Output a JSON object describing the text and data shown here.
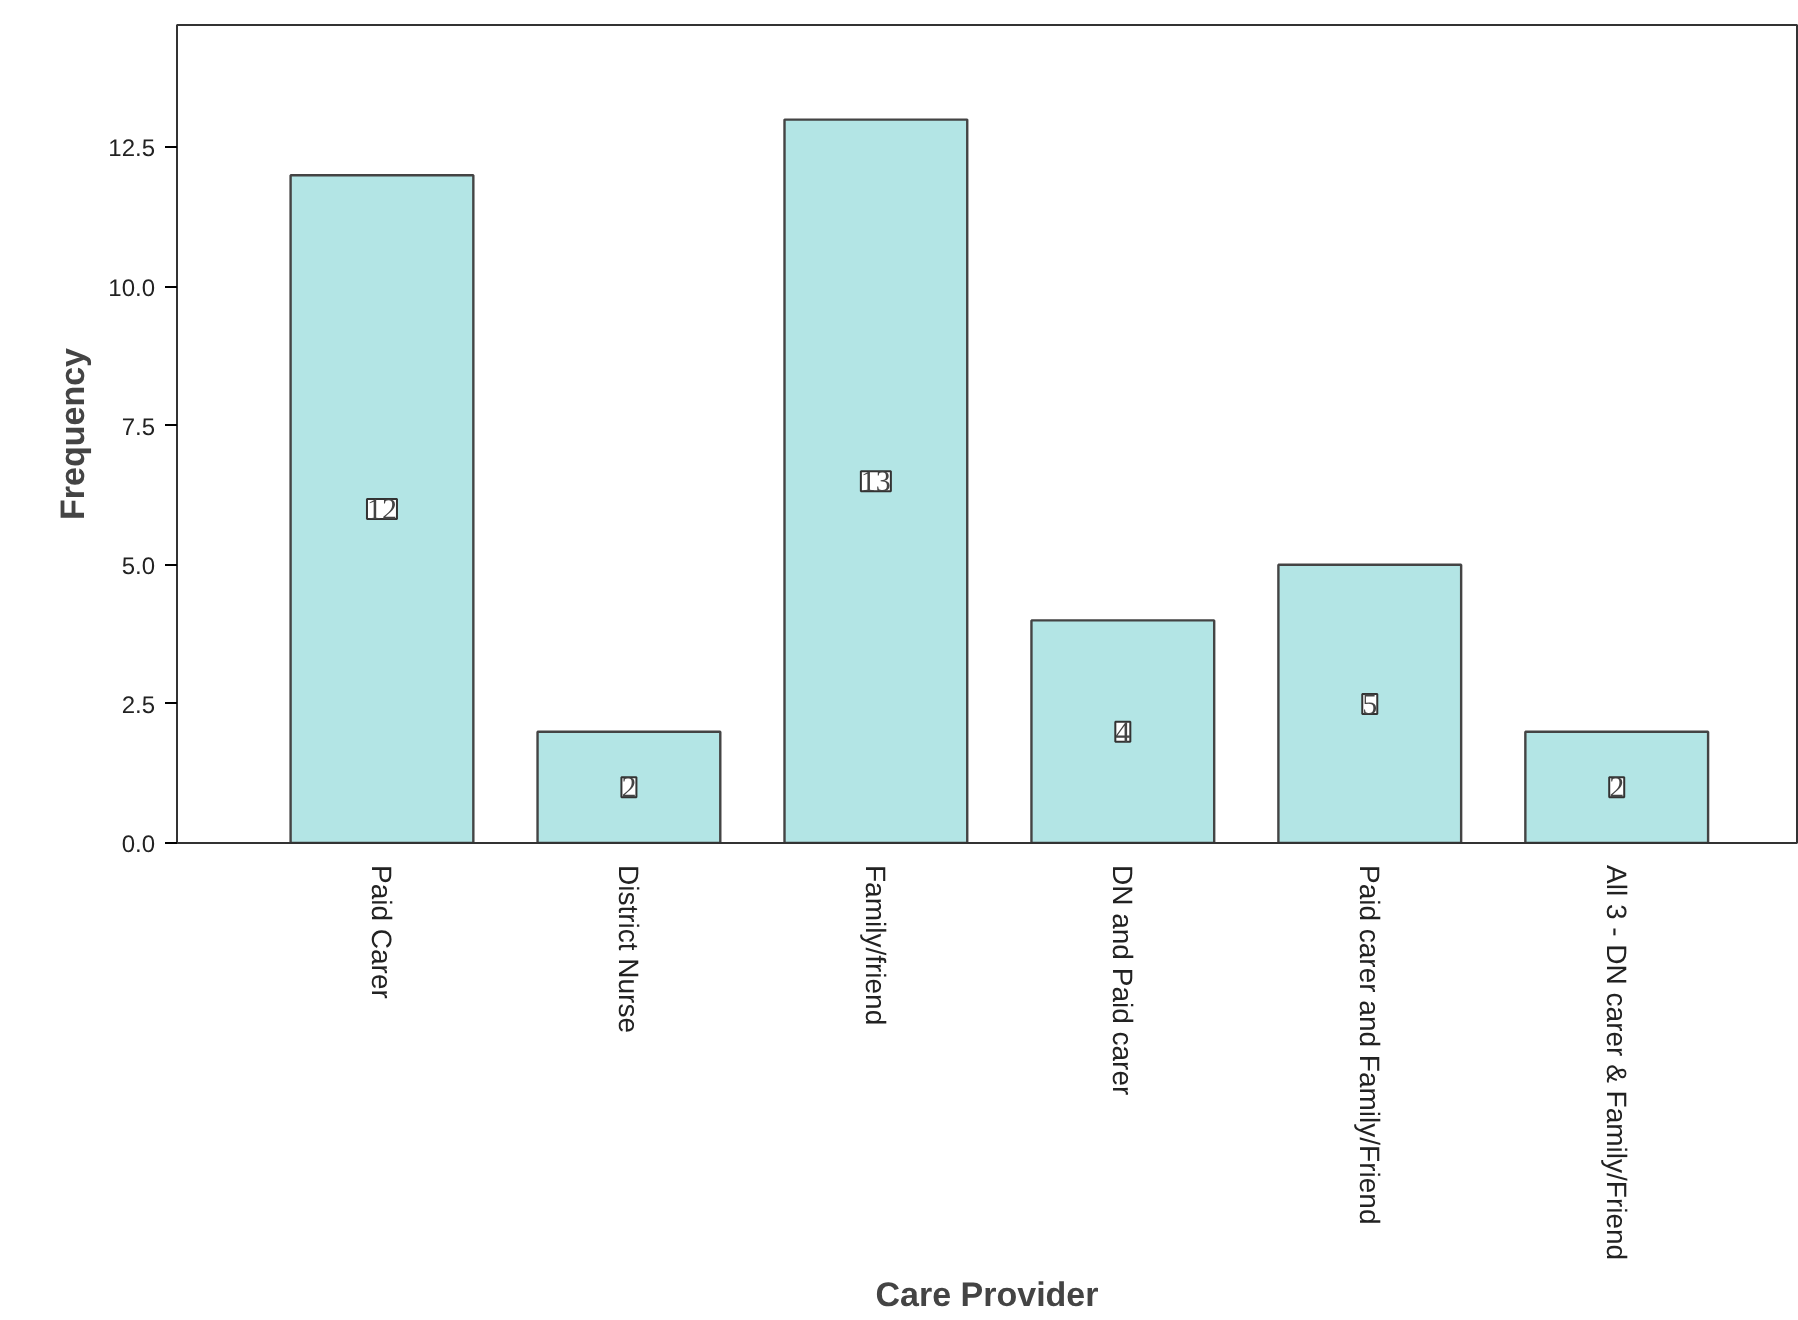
{
  "chart_data": {
    "type": "bar",
    "xlabel": "Care Provider",
    "ylabel": "Frequency",
    "categories": [
      "Paid Carer",
      "District Nurse",
      "Family/friend",
      "DN and Paid carer",
      "Paid carer and Family/Friend",
      "All 3 - DN carer & Family/Friend"
    ],
    "values": [
      12,
      2,
      13,
      4,
      5,
      2
    ],
    "color": "#b3e5e5",
    "ylim": [
      0,
      14.7
    ],
    "yticks": [
      {
        "value": 0,
        "label": "0.0"
      },
      {
        "value": 2.5,
        "label": "2.5"
      },
      {
        "value": 5,
        "label": "5.0"
      },
      {
        "value": 7.5,
        "label": "7.5"
      },
      {
        "value": 10,
        "label": "10.0"
      },
      {
        "value": 12.5,
        "label": "12.5"
      }
    ],
    "data_labels": true,
    "grid": false
  }
}
